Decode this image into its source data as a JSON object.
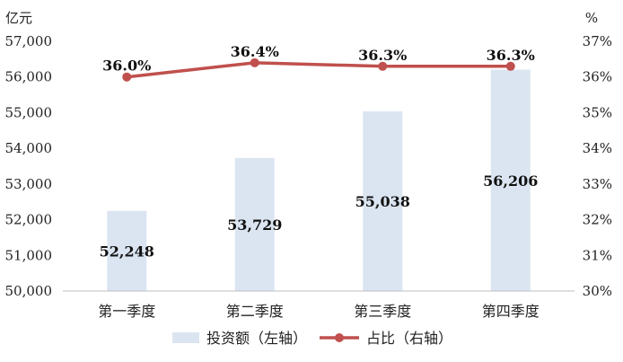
{
  "chart_data": {
    "type": "bar",
    "categories": [
      "第一季度",
      "第二季度",
      "第三季度",
      "第四季度"
    ],
    "series": [
      {
        "name": "投资额（左轴）",
        "type": "bar",
        "axis": "left",
        "values": [
          52248,
          53729,
          55038,
          56206
        ],
        "value_labels": [
          "52,248",
          "53,729",
          "55,038",
          "56,206"
        ],
        "color": "#dbe5f1"
      },
      {
        "name": "占比（右轴）",
        "type": "line",
        "axis": "right",
        "values": [
          36.0,
          36.4,
          36.3,
          36.3
        ],
        "value_labels": [
          "36.0%",
          "36.4%",
          "36.3%",
          "36.3%"
        ],
        "color": "#c0504d"
      }
    ],
    "left_axis": {
      "unit": "亿元",
      "range": [
        50000,
        57000
      ],
      "ticks": [
        50000,
        51000,
        52000,
        53000,
        54000,
        55000,
        56000,
        57000
      ],
      "tick_labels": [
        "50,000",
        "51,000",
        "52,000",
        "53,000",
        "54,000",
        "55,000",
        "56,000",
        "57,000"
      ]
    },
    "right_axis": {
      "unit": "%",
      "range": [
        30,
        37
      ],
      "ticks": [
        30,
        31,
        32,
        33,
        34,
        35,
        36,
        37
      ],
      "tick_labels": [
        "30%",
        "31%",
        "32%",
        "33%",
        "34%",
        "35%",
        "36%",
        "37%"
      ]
    },
    "legend_position": "bottom",
    "grid": false
  }
}
